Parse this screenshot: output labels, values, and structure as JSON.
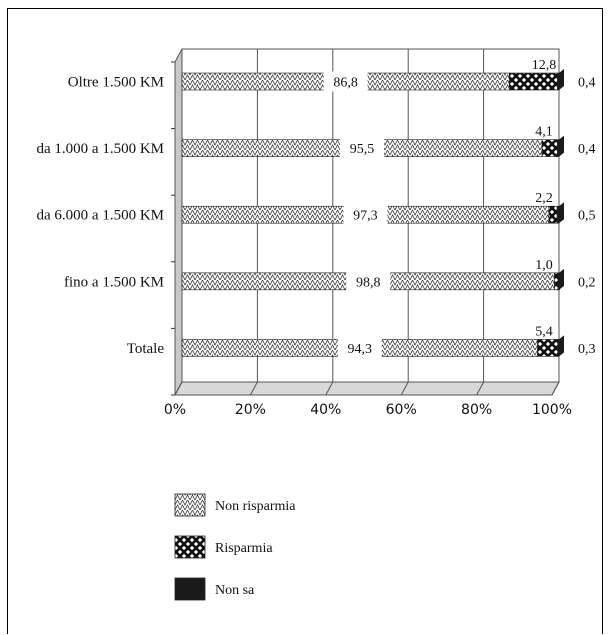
{
  "chart_data": {
    "type": "bar",
    "orientation": "horizontal",
    "stacked": true,
    "percent_stacked": true,
    "three_d": true,
    "categories": [
      "Oltre 1.500 KM",
      "da 1.000 a 1.500 KM",
      "da 6.000 a 1.500 KM",
      "fino a 1.500 KM",
      "Totale"
    ],
    "series": [
      {
        "name": "Non risparmia",
        "values": [
          86.8,
          95.5,
          97.3,
          98.8,
          94.3
        ],
        "pattern": "light-zigzag"
      },
      {
        "name": "Risparmia",
        "values": [
          12.8,
          4.1,
          2.2,
          1.0,
          5.4
        ],
        "pattern": "dark-diamond"
      },
      {
        "name": "Non sa",
        "values": [
          0.4,
          0.4,
          0.5,
          0.2,
          0.3
        ],
        "pattern": "solid-black"
      }
    ],
    "xlim": [
      0,
      100
    ],
    "xticks": [
      "0%",
      "20%",
      "40%",
      "60%",
      "80%",
      "100%"
    ],
    "grid": true,
    "legend_position": "bottom-left",
    "colors": {
      "wall": "#c8c8c8",
      "floor": "#d8d8d8",
      "dark": "#1a1a1a"
    }
  }
}
